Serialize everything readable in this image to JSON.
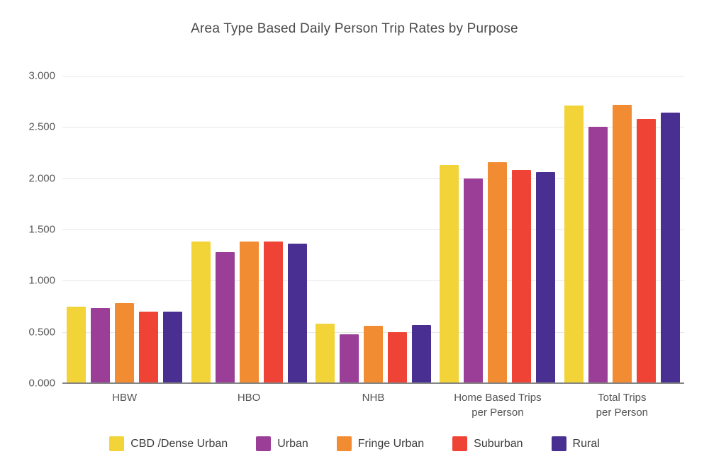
{
  "title": "Area Type Based Daily Person Trip Rates by Purpose",
  "axis_colors": {
    "grid": "#e6e6e6",
    "baseline": "#858585",
    "tick_text": "#585858",
    "category_text": "#545454",
    "title_text": "#4a4a4a"
  },
  "chart_data": {
    "type": "bar",
    "title": "Area Type Based Daily Person Trip Rates by Purpose",
    "xlabel": "",
    "ylabel": "",
    "ylim": [
      0,
      3.0
    ],
    "ytick_step": 0.5,
    "yticks": [
      "0.000",
      "0.500",
      "1.000",
      "1.500",
      "2.000",
      "2.500",
      "3.000"
    ],
    "grid": true,
    "legend_position": "bottom",
    "categories": [
      "HBW",
      "HBO",
      "NHB",
      "Home Based Trips\nper Person",
      "Total Trips\nper Person"
    ],
    "series": [
      {
        "name": "CBD /Dense Urban",
        "color": "#F2D338",
        "values": [
          0.75,
          1.38,
          0.58,
          2.13,
          2.71
        ]
      },
      {
        "name": "Urban",
        "color": "#9A3E98",
        "values": [
          0.73,
          1.28,
          0.48,
          2.0,
          2.5
        ]
      },
      {
        "name": "Fringe Urban",
        "color": "#F28C33",
        "values": [
          0.78,
          1.38,
          0.56,
          2.16,
          2.72
        ]
      },
      {
        "name": "Suburban",
        "color": "#EF4335",
        "values": [
          0.7,
          1.38,
          0.5,
          2.08,
          2.58
        ]
      },
      {
        "name": "Rural",
        "color": "#4A2F92",
        "values": [
          0.7,
          1.36,
          0.57,
          2.06,
          2.64
        ]
      }
    ]
  }
}
